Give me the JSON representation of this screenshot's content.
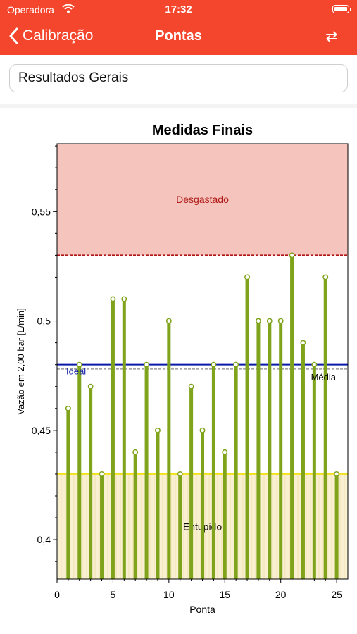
{
  "status_bar": {
    "carrier": "Operadora",
    "time": "17:32"
  },
  "nav": {
    "back_label": "Calibração",
    "title": "Pontas",
    "swap_icon": "swap-arrows-icon",
    "accent": "#f4462c"
  },
  "selector": {
    "value": "Resultados Gerais"
  },
  "chart_data": {
    "type": "bar",
    "title": "Medidas Finais",
    "xlabel": "Ponta",
    "ylabel": "Vazão em 2,00 bar [L/min]",
    "xlim": [
      0,
      26
    ],
    "ylim": [
      0.382,
      0.581
    ],
    "xticks": [
      0,
      5,
      10,
      15,
      20,
      25
    ],
    "yticks": [
      0.4,
      0.45,
      0.5,
      0.55
    ],
    "ytick_labels": [
      "0,4",
      "0,45",
      "0,5",
      "0,55"
    ],
    "bar_base": 0.382,
    "x": [
      1,
      2,
      3,
      4,
      5,
      6,
      7,
      8,
      9,
      10,
      11,
      12,
      13,
      14,
      15,
      16,
      17,
      18,
      19,
      20,
      21,
      22,
      23,
      24,
      25
    ],
    "values": [
      0.46,
      0.48,
      0.47,
      0.43,
      0.51,
      0.51,
      0.44,
      0.48,
      0.45,
      0.5,
      0.43,
      0.47,
      0.45,
      0.48,
      0.44,
      0.48,
      0.52,
      0.5,
      0.5,
      0.5,
      0.53,
      0.49,
      0.48,
      0.52,
      0.43
    ],
    "bar_color": "#7fa31a",
    "bands": [
      {
        "label": "Desgastado",
        "from": 0.53,
        "to": 0.581,
        "color": "#f5c4bc",
        "line_color": "#b01818",
        "label_color": "#b01818"
      },
      {
        "label": "Entupido",
        "from": 0.382,
        "to": 0.43,
        "color": "#f8f0d0",
        "line_color": "#f2e21a",
        "label_color": "#111111"
      }
    ],
    "reference_lines": [
      {
        "label": "Ideal",
        "value": 0.48,
        "color": "#0a1aa8"
      },
      {
        "label": "Média",
        "value": 0.478,
        "color": "#9a9a9a"
      }
    ],
    "grid": false
  }
}
